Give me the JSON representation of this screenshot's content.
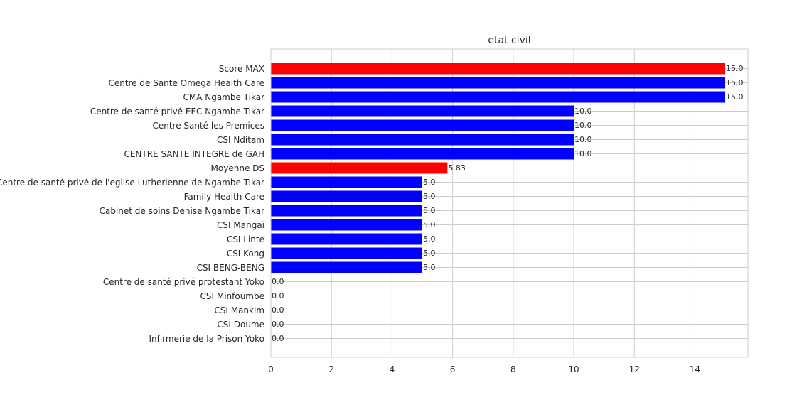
{
  "chart_data": {
    "type": "bar",
    "orientation": "horizontal",
    "title": "etat civil",
    "xlabel": "",
    "ylabel": "",
    "xlim": [
      0,
      15.75
    ],
    "xticks": [
      0,
      2,
      4,
      6,
      8,
      10,
      12,
      14
    ],
    "grid": true,
    "categories": [
      "Score MAX",
      "Centre de Sante Omega Health  Care",
      "CMA Ngambe Tikar",
      "Centre de santé privé EEC Ngambe Tikar",
      "Centre Santé les Premices",
      "CSI Nditam",
      "CENTRE SANTE INTEGRE  de GAH",
      "Moyenne DS",
      "Centre de santé privé  de l'eglise Lutherienne de Ngambe Tikar",
      "Family Health Care",
      "Cabinet de soins Denise Ngambe Tikar",
      "CSI Mangaï",
      "CSI Linte",
      "CSI Kong",
      "CSI BENG-BENG",
      "Centre de santé privé protestant Yoko",
      "CSI Minfoumbe",
      "CSI Mankim",
      "CSI Doume",
      "Infirmerie de la Prison Yoko"
    ],
    "values": [
      15.0,
      15.0,
      15.0,
      10.0,
      10.0,
      10.0,
      10.0,
      5.83,
      5.0,
      5.0,
      5.0,
      5.0,
      5.0,
      5.0,
      5.0,
      0.0,
      0.0,
      0.0,
      0.0,
      0.0
    ],
    "value_labels": [
      "15.0",
      "15.0",
      "15.0",
      "10.0",
      "10.0",
      "10.0",
      "10.0",
      "5.83",
      "5.0",
      "5.0",
      "5.0",
      "5.0",
      "5.0",
      "5.0",
      "5.0",
      "0.0",
      "0.0",
      "0.0",
      "0.0",
      "0.0"
    ],
    "bar_colors": [
      "#ff0000",
      "#0000ff",
      "#0000ff",
      "#0000ff",
      "#0000ff",
      "#0000ff",
      "#0000ff",
      "#ff0000",
      "#0000ff",
      "#0000ff",
      "#0000ff",
      "#0000ff",
      "#0000ff",
      "#0000ff",
      "#0000ff",
      "#0000ff",
      "#0000ff",
      "#0000ff",
      "#0000ff",
      "#0000ff"
    ],
    "colors": {
      "highlight": "#ff0000",
      "default": "#0000ff",
      "grid": "#cccccc",
      "axes": "#cccccc"
    }
  }
}
